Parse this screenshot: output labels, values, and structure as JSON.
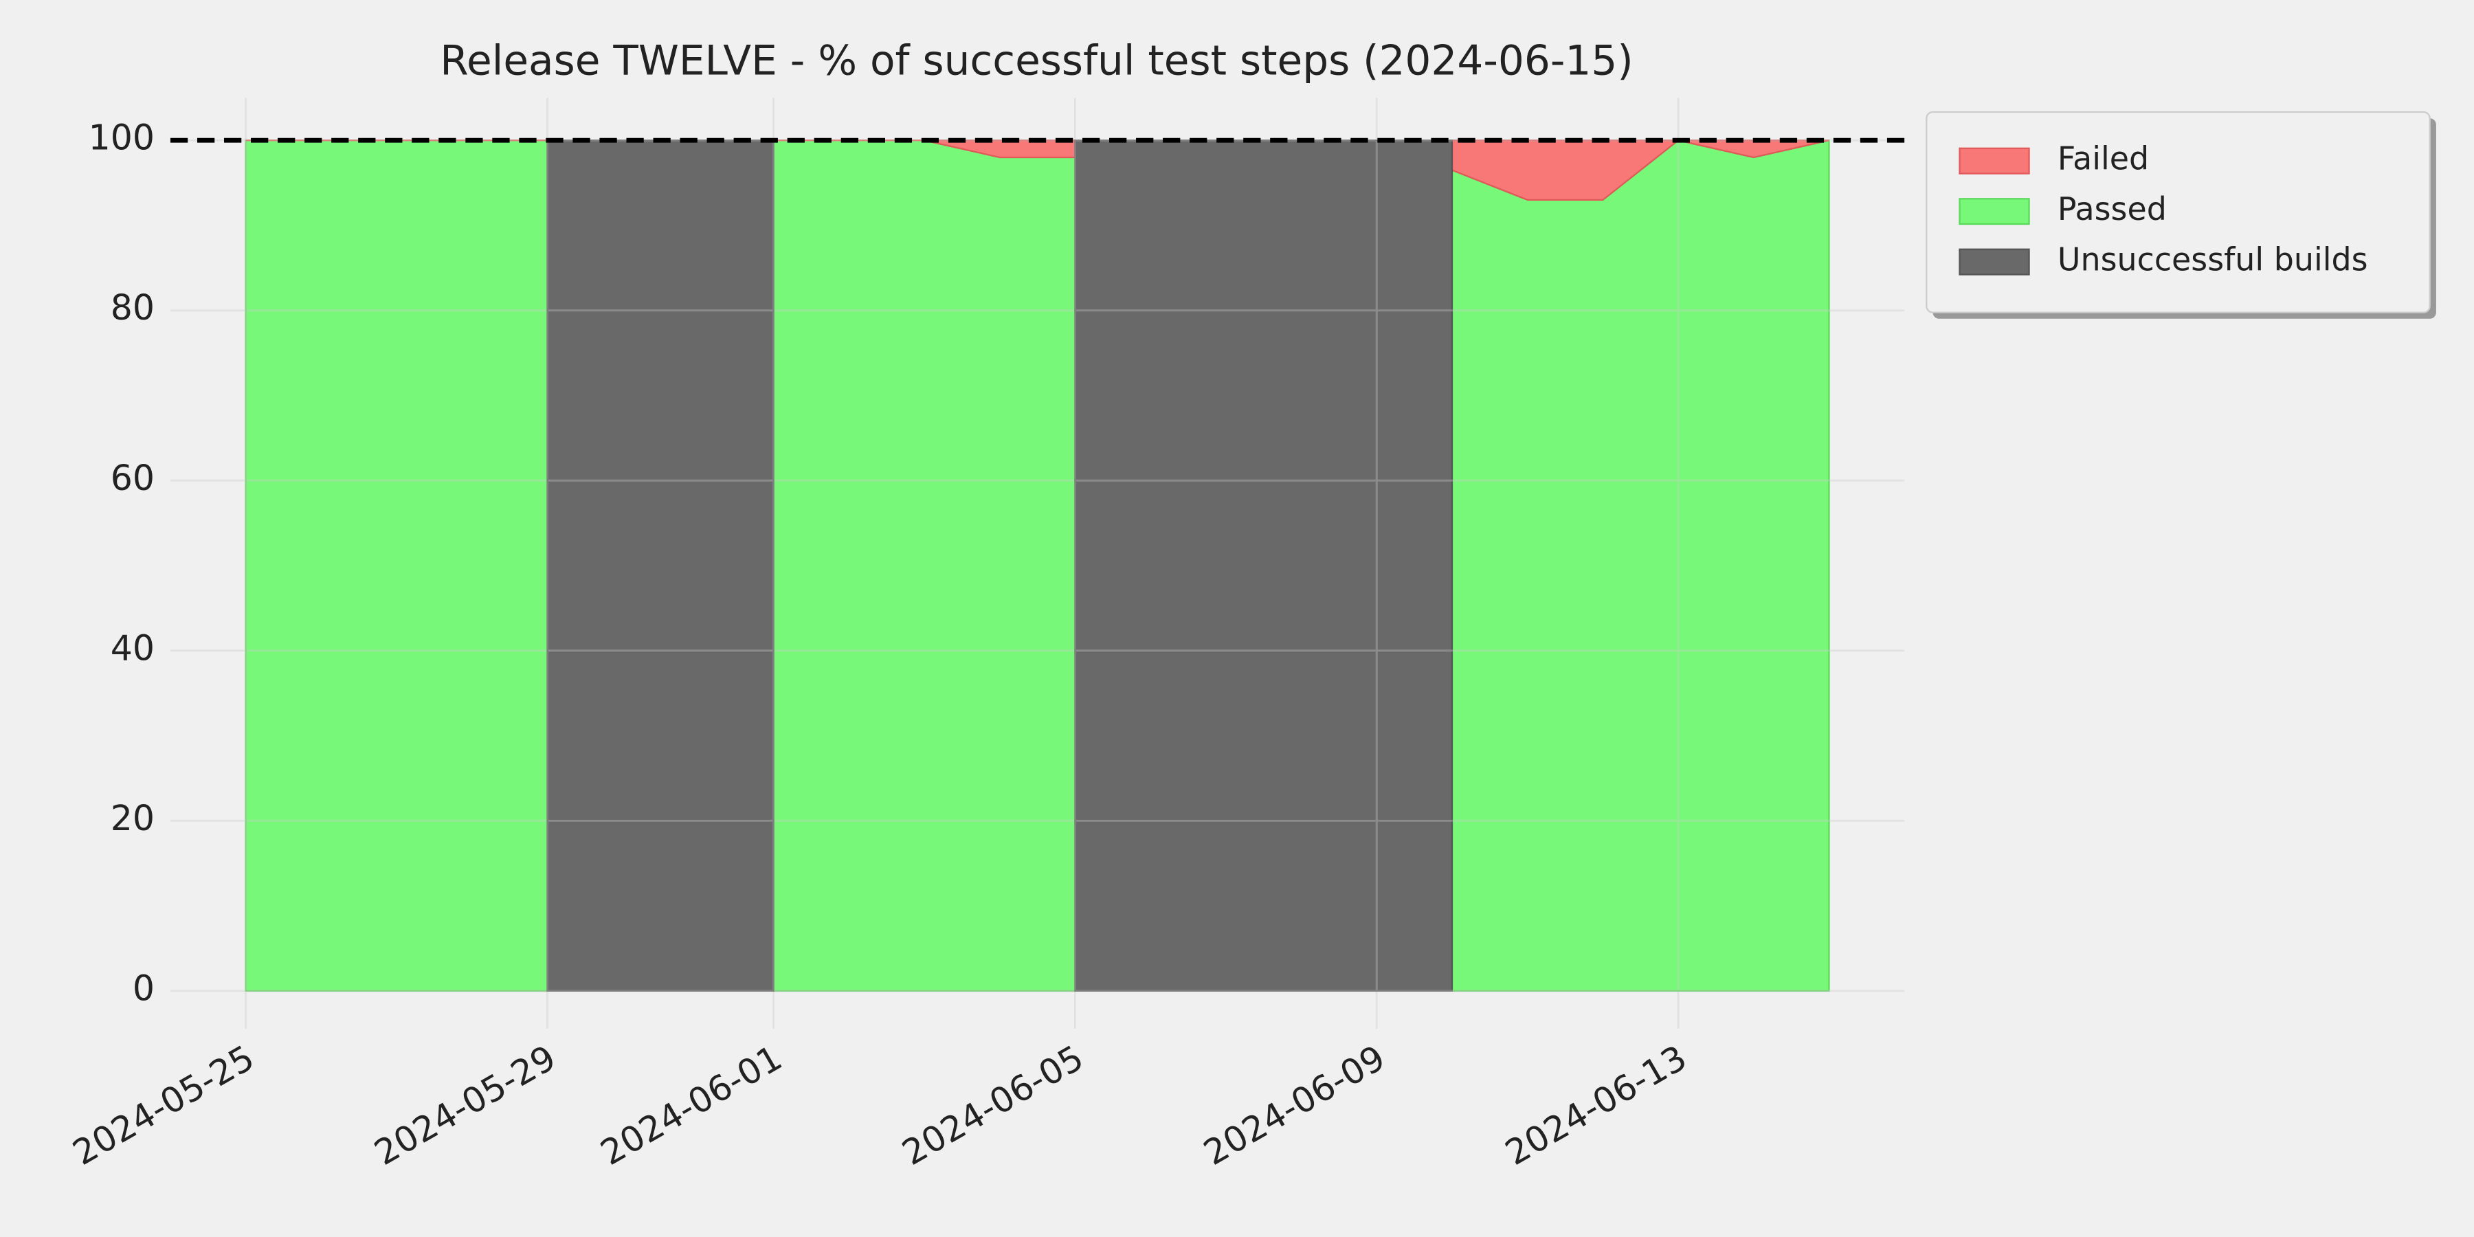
{
  "chart_data": {
    "type": "area",
    "title": "Release TWELVE - % of successful test steps (2024-06-15)",
    "x": [
      "2024-05-25",
      "2024-05-26",
      "2024-05-27",
      "2024-05-28",
      "2024-05-29",
      "2024-05-30",
      "2024-05-31",
      "2024-06-01",
      "2024-06-02",
      "2024-06-03",
      "2024-06-04",
      "2024-06-05",
      "2024-06-06",
      "2024-06-07",
      "2024-06-08",
      "2024-06-09",
      "2024-06-10",
      "2024-06-11",
      "2024-06-12",
      "2024-06-13",
      "2024-06-14",
      "2024-06-15"
    ],
    "series": [
      {
        "name": "Failed",
        "color": "#f87878",
        "values": [
          0,
          0,
          0,
          0,
          0,
          null,
          null,
          0,
          0,
          0,
          2,
          2,
          null,
          null,
          null,
          null,
          3.5,
          7,
          7,
          0,
          2,
          0
        ]
      },
      {
        "name": "Passed",
        "color": "#78f878",
        "values": [
          100,
          100,
          100,
          100,
          100,
          null,
          null,
          100,
          100,
          100,
          98,
          98,
          null,
          null,
          null,
          null,
          96.5,
          93,
          93,
          100,
          98,
          100
        ]
      },
      {
        "name": "Unsuccessful builds",
        "color": "#696969",
        "values": [
          null,
          null,
          null,
          null,
          100,
          100,
          100,
          100,
          null,
          null,
          null,
          100,
          100,
          100,
          100,
          100,
          100,
          null,
          null,
          null,
          null,
          null
        ]
      }
    ],
    "reference_line": 100,
    "xlim": [
      "2024-05-24",
      "2024-06-16"
    ],
    "xticks": [
      "2024-05-25",
      "2024-05-29",
      "2024-06-01",
      "2024-06-05",
      "2024-06-09",
      "2024-06-13"
    ],
    "ylim": [
      0,
      105
    ],
    "yticks": [
      0,
      20,
      40,
      60,
      80,
      100
    ],
    "grid": true,
    "legend": "upper right outside"
  }
}
